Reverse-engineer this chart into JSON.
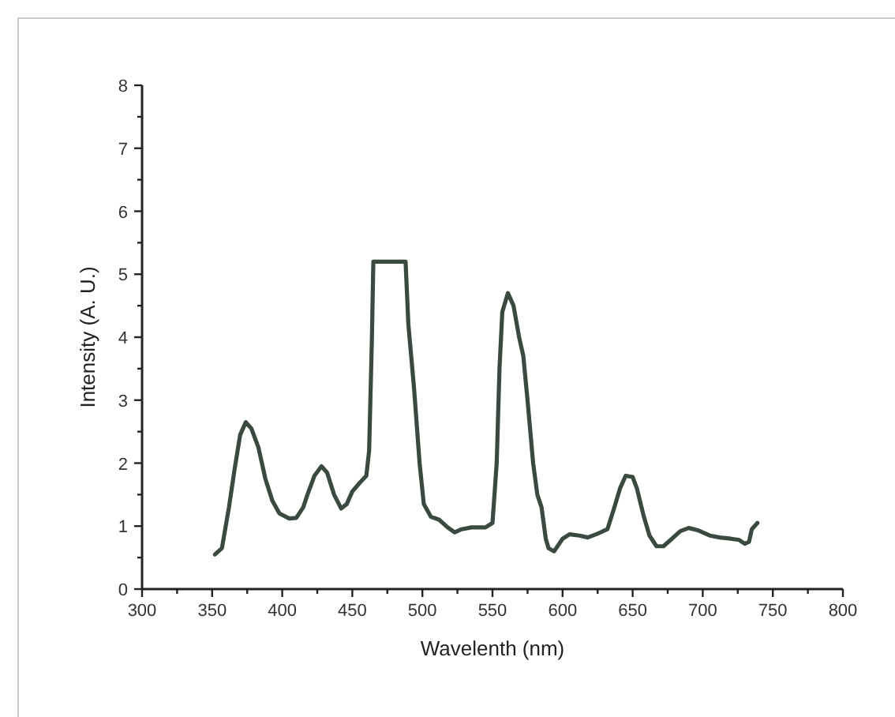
{
  "chart_data": {
    "type": "line",
    "xlabel": "Wavelenth (nm)",
    "ylabel": "Intensity (A. U.)",
    "xlim": [
      300,
      800
    ],
    "ylim": [
      0,
      8
    ],
    "xticks": [
      300,
      {
        "value": 325,
        "label": null
      },
      350,
      {
        "value": 375,
        "label": null
      },
      400,
      {
        "value": 425,
        "label": null
      },
      450,
      {
        "value": 475,
        "label": null
      },
      500,
      {
        "value": 525,
        "label": null
      },
      550,
      {
        "value": 575,
        "label": null
      },
      600,
      {
        "value": 625,
        "label": null
      },
      650,
      {
        "value": 675,
        "label": null
      },
      700,
      {
        "value": 725,
        "label": null
      },
      750,
      {
        "value": 775,
        "label": null
      },
      800
    ],
    "yticks": [
      0,
      {
        "value": 0.5,
        "label": null
      },
      1,
      {
        "value": 1.5,
        "label": null
      },
      2,
      {
        "value": 2.5,
        "label": null
      },
      3,
      {
        "value": 3.5,
        "label": null
      },
      4,
      {
        "value": 4.5,
        "label": null
      },
      5,
      {
        "value": 5.5,
        "label": null
      },
      6,
      {
        "value": 6.5,
        "label": null
      },
      7,
      {
        "value": 7.5,
        "label": null
      },
      8
    ],
    "grid": false,
    "marker": "none",
    "line_style": "solid",
    "x": [
      352,
      357,
      362,
      366,
      370,
      374,
      378,
      383,
      388,
      393,
      398,
      405,
      410,
      415,
      418,
      423,
      428,
      432,
      437,
      442,
      446,
      450,
      455,
      460,
      462,
      464,
      465,
      488,
      490,
      494,
      498,
      501,
      506,
      512,
      518,
      523,
      528,
      535,
      545,
      550,
      553,
      555,
      557,
      561,
      565,
      569,
      572,
      575,
      579,
      582,
      585,
      588,
      590,
      594,
      597,
      600,
      605,
      612,
      618,
      625,
      632,
      637,
      641,
      645,
      650,
      653,
      658,
      662,
      667,
      672,
      678,
      684,
      690,
      697,
      705,
      712,
      720,
      726,
      730,
      733,
      735,
      739
    ],
    "series": [
      {
        "color": "#3a4a3f",
        "values": [
          0.55,
          0.65,
          1.3,
          1.9,
          2.45,
          2.65,
          2.55,
          2.25,
          1.75,
          1.4,
          1.2,
          1.12,
          1.13,
          1.3,
          1.5,
          1.8,
          1.95,
          1.85,
          1.5,
          1.28,
          1.35,
          1.55,
          1.68,
          1.8,
          2.2,
          4.0,
          5.2,
          5.2,
          4.2,
          3.2,
          2.0,
          1.35,
          1.15,
          1.1,
          0.98,
          0.9,
          0.95,
          0.98,
          0.98,
          1.05,
          2.0,
          3.5,
          4.4,
          4.7,
          4.5,
          4.0,
          3.7,
          3.0,
          2.0,
          1.5,
          1.3,
          0.8,
          0.65,
          0.6,
          0.7,
          0.8,
          0.87,
          0.85,
          0.82,
          0.88,
          0.95,
          1.3,
          1.6,
          1.8,
          1.78,
          1.6,
          1.15,
          0.85,
          0.68,
          0.68,
          0.8,
          0.92,
          0.97,
          0.93,
          0.85,
          0.82,
          0.8,
          0.78,
          0.72,
          0.75,
          0.95,
          1.05
        ]
      }
    ]
  }
}
